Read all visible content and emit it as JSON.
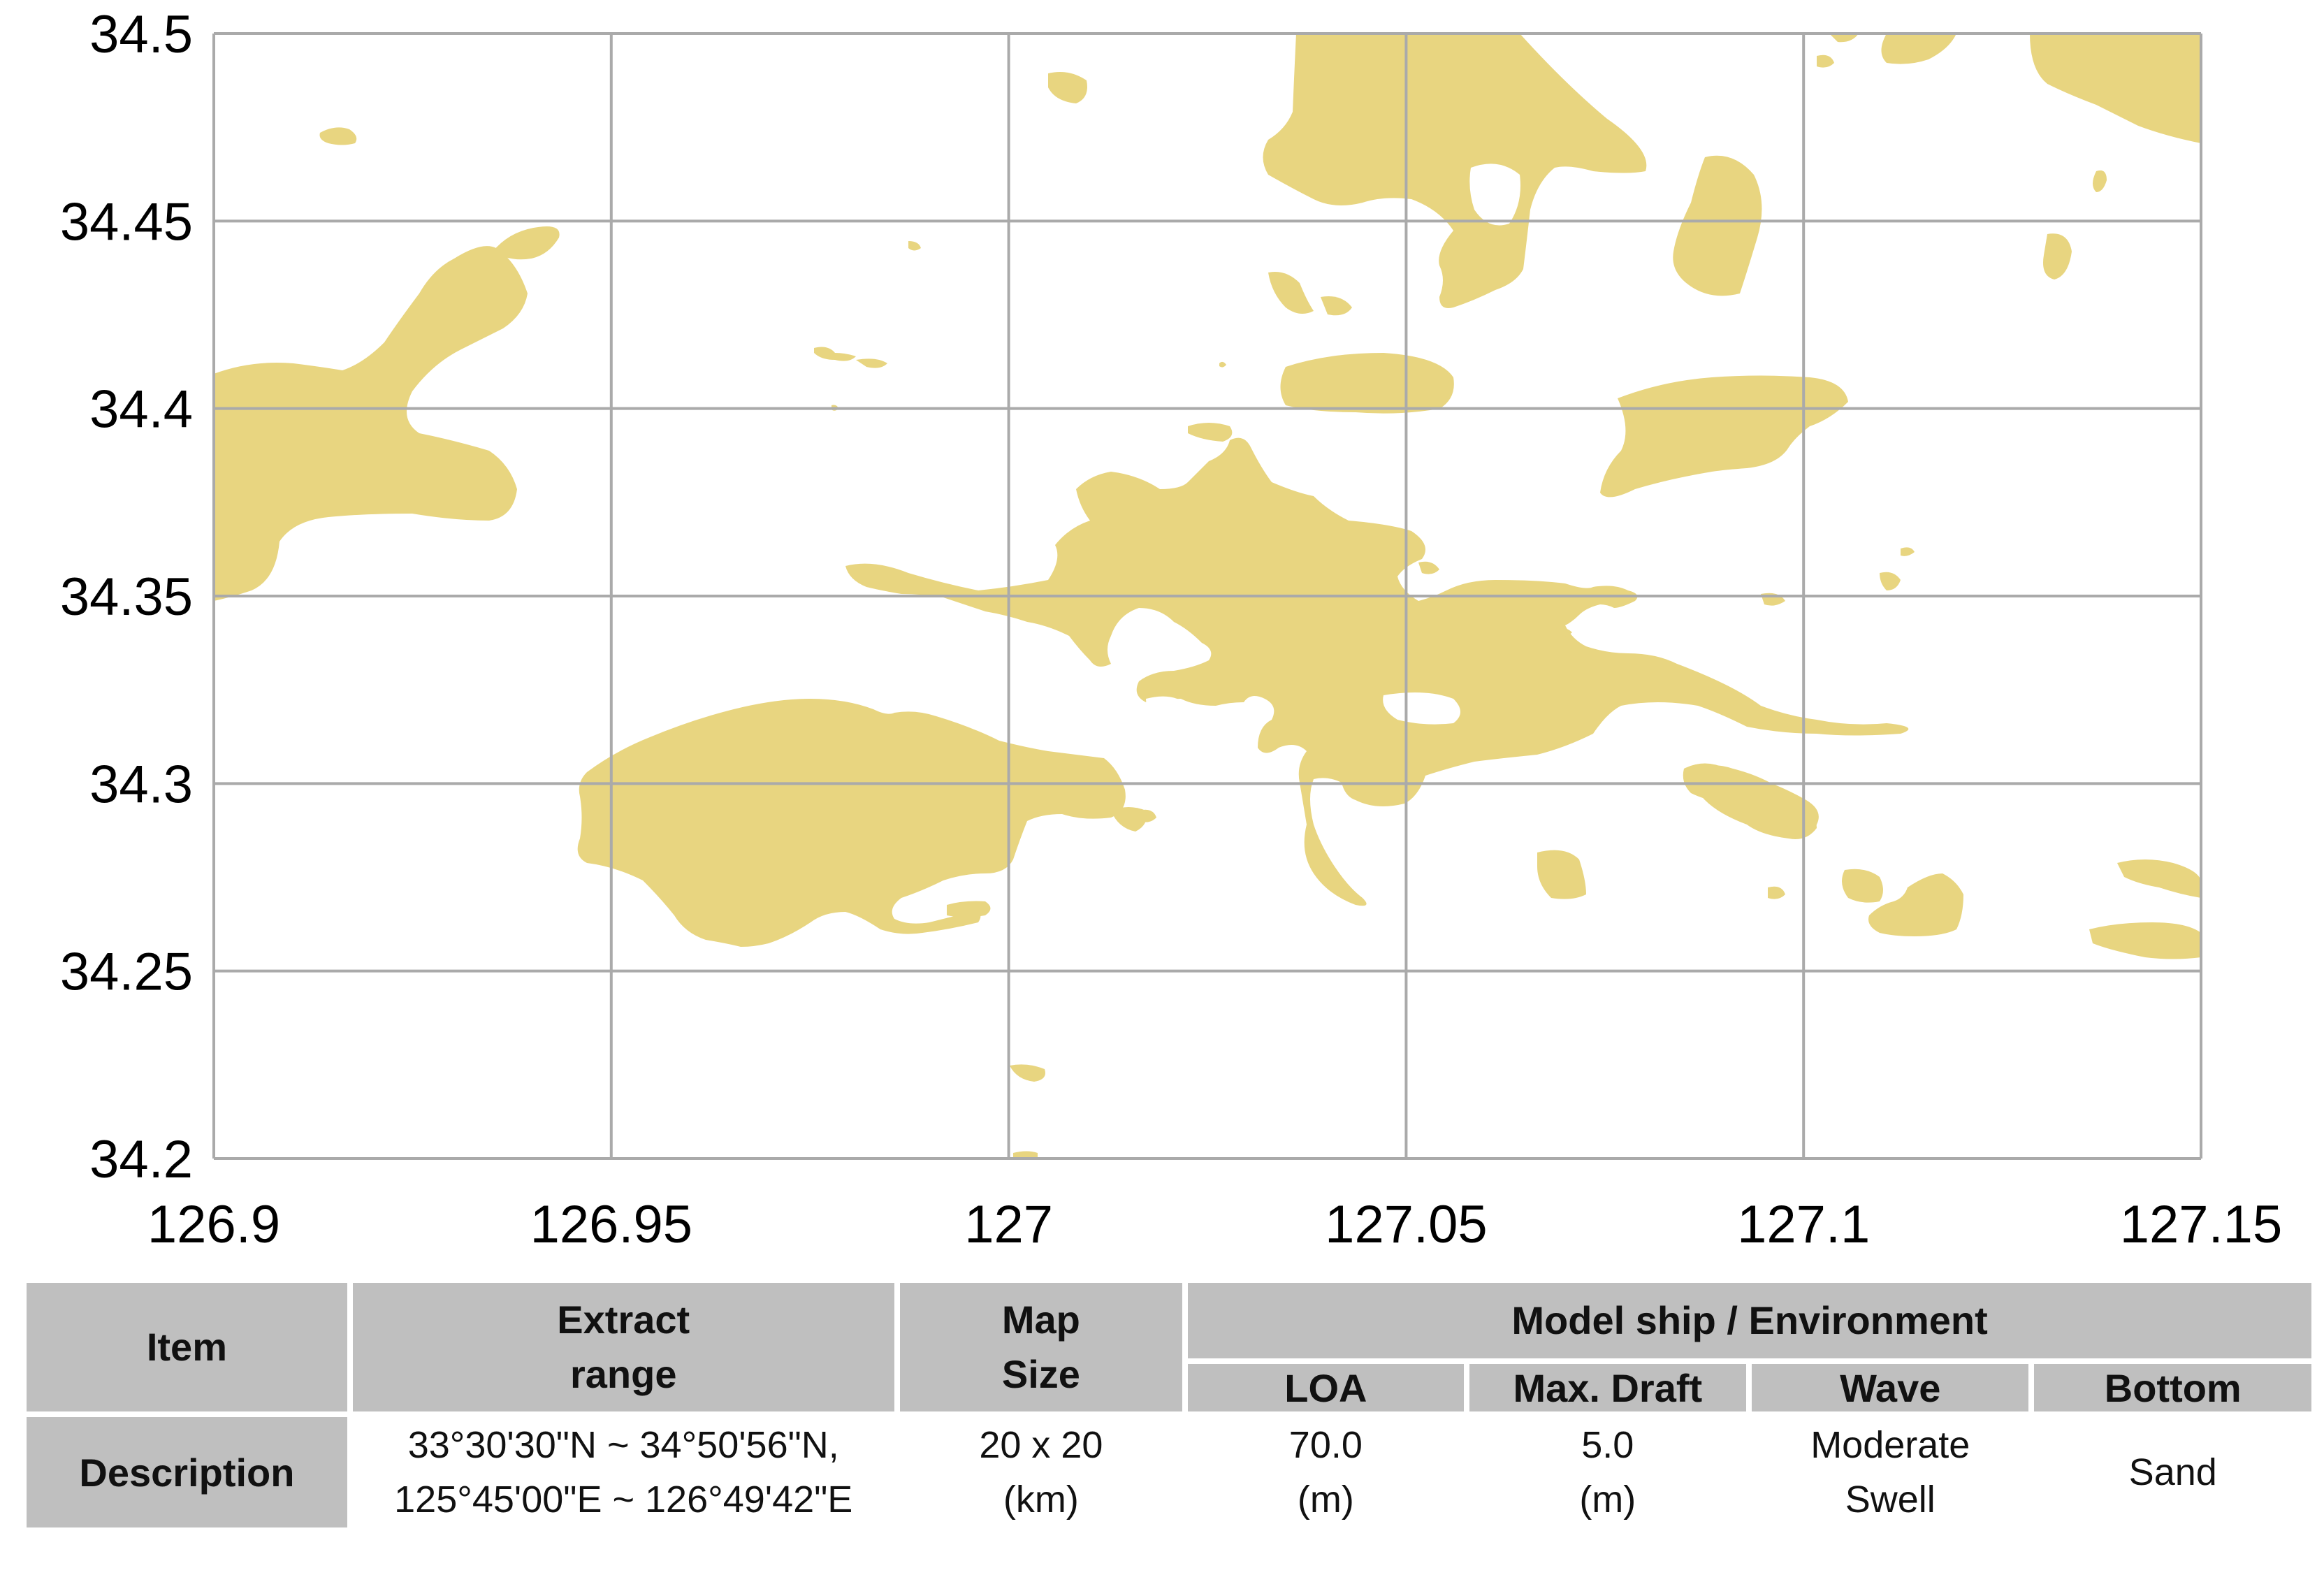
{
  "map": {
    "x_ticks": [
      "126.9",
      "126.95",
      "127",
      "127.05",
      "127.1",
      "127.15"
    ],
    "y_ticks": [
      "34.5",
      "34.45",
      "34.4",
      "34.35",
      "34.3",
      "34.25",
      "34.2"
    ],
    "x_range": [
      126.9,
      127.15
    ],
    "y_range": [
      34.2,
      34.5
    ],
    "grid": true,
    "land_color": "#e8d580",
    "water_color": "#ffffff",
    "grid_color": "#aaaaaa"
  },
  "table": {
    "headers": {
      "item": "Item",
      "extract_line1": "Extract",
      "extract_line2": "range",
      "mapsize_line1": "Map",
      "mapsize_line2": "Size",
      "model_env": "Model ship / Environment",
      "loa": "LOA",
      "max_draft": "Max. Draft",
      "wave": "Wave",
      "bottom": "Bottom"
    },
    "row": {
      "label": "Description",
      "extract_line1": "33°30'30\"N ~ 34°50'56\"N,",
      "extract_line2": "125°45'00\"E ~ 126°49'42\"E",
      "mapsize_line1": "20 x 20",
      "mapsize_line2": "(km)",
      "loa_line1": "70.0",
      "loa_line2": "(m)",
      "draft_line1": "5.0",
      "draft_line2": "(m)",
      "wave_line1": "Moderate",
      "wave_line2": "Swell",
      "bottom": "Sand"
    }
  }
}
